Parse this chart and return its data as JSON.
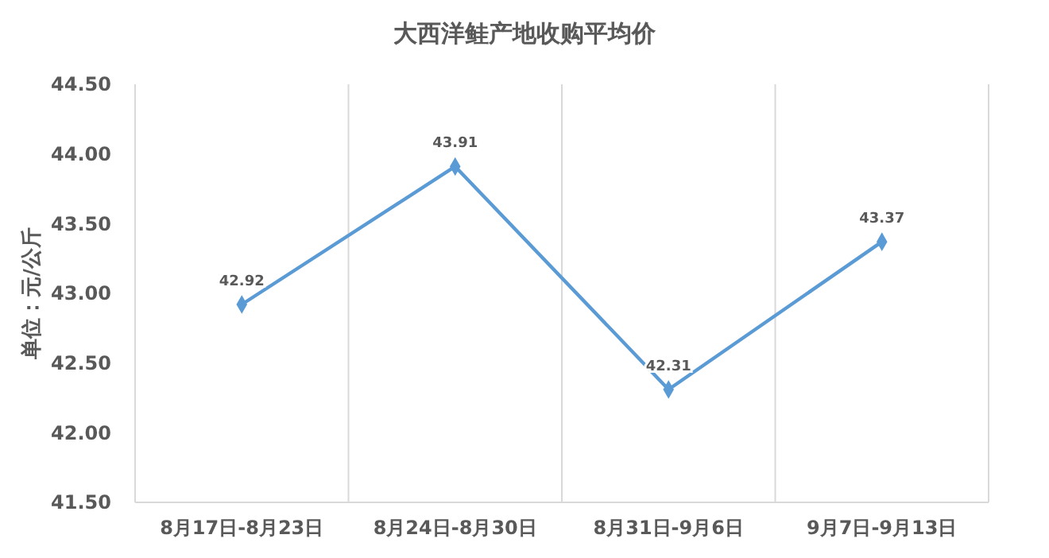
{
  "chart_data": {
    "type": "line",
    "title": "大西洋鲑产地收购平均价",
    "ylabel": "单位：元/公斤",
    "categories": [
      "8月17日-8月23日",
      "8月24日-8月30日",
      "8月31日-9月6日",
      "9月7日-9月13日"
    ],
    "series": [
      {
        "color": "#5b9bd5",
        "values": [
          42.92,
          43.91,
          42.31,
          43.37
        ]
      }
    ],
    "ylim": [
      41.5,
      44.5
    ],
    "yticks": [
      {
        "value": 41.5,
        "label": "41.50"
      },
      {
        "value": 42,
        "label": "42.00"
      },
      {
        "value": 42.5,
        "label": "42.50"
      },
      {
        "value": 43,
        "label": "43.00"
      },
      {
        "value": 43.5,
        "label": "43.50"
      },
      {
        "value": 44,
        "label": "44.00"
      },
      {
        "value": 44.5,
        "label": "44.50"
      }
    ],
    "grid": "x",
    "marker": "diamond",
    "data_labels": true
  }
}
